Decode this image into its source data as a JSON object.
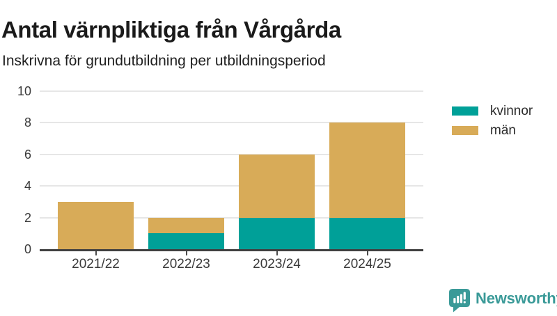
{
  "title": "Antal värnpliktiga från Vårgårda",
  "subtitle": "Inskrivna för grundutbildning per utbildningsperiod",
  "chart_data": {
    "type": "bar",
    "stacked": true,
    "title": "Antal värnpliktiga från Vårgårda",
    "subtitle": "Inskrivna för grundutbildning per utbildningsperiod",
    "categories": [
      "2021/22",
      "2022/23",
      "2023/24",
      "2024/25"
    ],
    "series": [
      {
        "name": "kvinnor",
        "color": "#00a098",
        "values": [
          0,
          1,
          2,
          2
        ]
      },
      {
        "name": "män",
        "color": "#d8ab58",
        "values": [
          3,
          1,
          4,
          6
        ]
      }
    ],
    "totals": [
      3,
      2,
      6,
      8
    ],
    "xlabel": "",
    "ylabel": "",
    "ylim": [
      0,
      10
    ],
    "yticks": [
      0,
      2,
      4,
      6,
      8,
      10
    ],
    "grid": true,
    "legend_position": "right"
  },
  "legend": {
    "items": [
      {
        "label": "kvinnor",
        "color": "#00a098"
      },
      {
        "label": "män",
        "color": "#d8ab58"
      }
    ]
  },
  "branding": {
    "logo_text": "Newsworthy",
    "logo_color": "#3a9a98",
    "icon": "newsworthy-speech-bubble-chart-icon"
  },
  "colors": {
    "kvinnor": "#00a098",
    "man": "#d8ab58",
    "axis_line": "#404040",
    "gridline": "#e6e6e6",
    "text": "#1a1a1a",
    "tick_text": "#3a3a3a"
  }
}
